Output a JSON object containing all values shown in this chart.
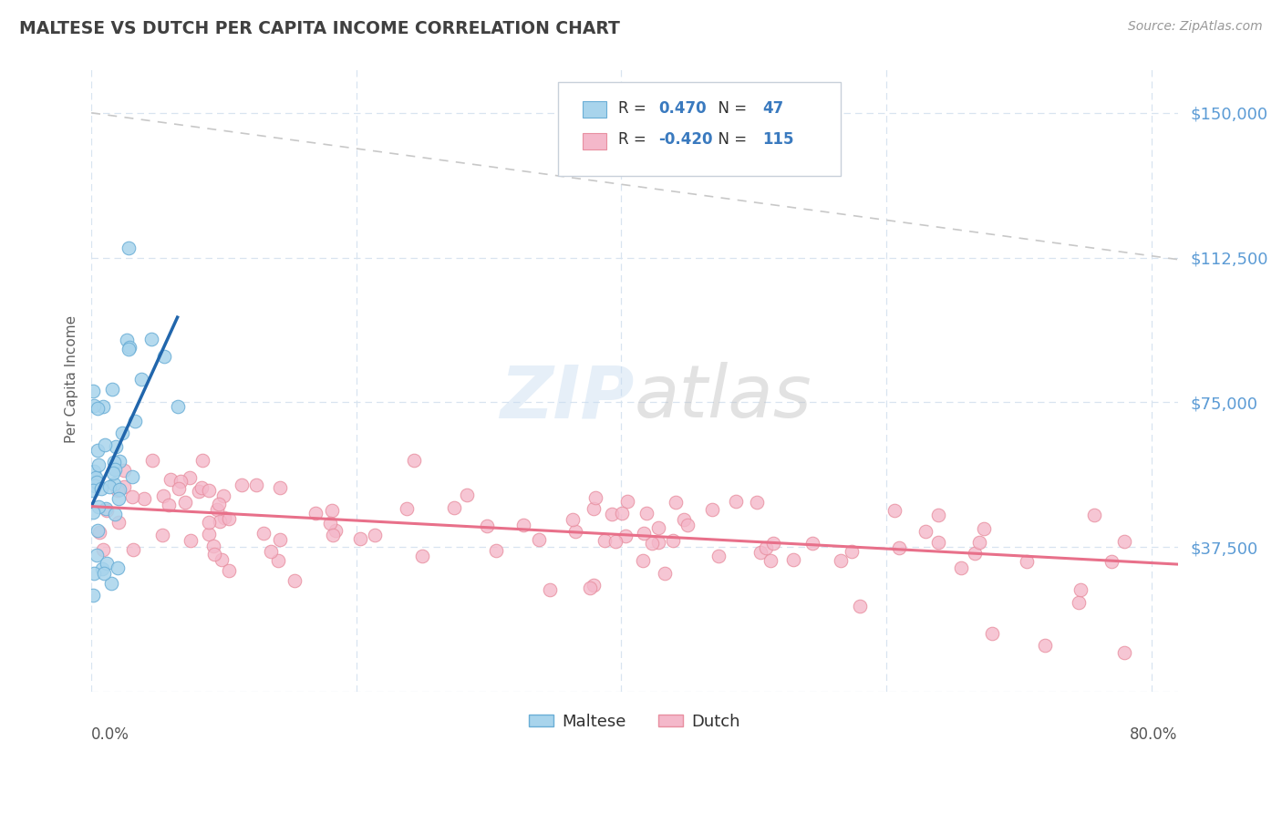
{
  "title": "MALTESE VS DUTCH PER CAPITA INCOME CORRELATION CHART",
  "source": "Source: ZipAtlas.com",
  "ylabel": "Per Capita Income",
  "yticks": [
    0,
    37500,
    75000,
    112500,
    150000
  ],
  "ytick_labels": [
    "",
    "$37,500",
    "$75,000",
    "$112,500",
    "$150,000"
  ],
  "ylim": [
    0,
    162000
  ],
  "xlim": [
    0.0,
    0.82
  ],
  "maltese_color": "#a8d4ec",
  "maltese_edge_color": "#6aaed6",
  "dutch_color": "#f4b8ca",
  "dutch_edge_color": "#e88fa0",
  "maltese_line_color": "#2166ac",
  "dutch_line_color": "#e8708a",
  "ref_line_color": "#c8c8c8",
  "title_color": "#404040",
  "ylabel_color": "#606060",
  "ytick_color": "#5b9bd5",
  "legend_text_color": "#303030",
  "r_value_color": "#3a7abf",
  "grid_color": "#d8e4f0",
  "background_color": "#ffffff",
  "maltese_R": 0.47,
  "maltese_N": 47,
  "dutch_R": -0.42,
  "dutch_N": 115,
  "ref_line_x": [
    0.0,
    0.82
  ],
  "ref_line_y": [
    150000,
    112000
  ],
  "maltese_line_x": [
    0.0,
    0.065
  ],
  "maltese_line_y": [
    48000,
    97000
  ],
  "dutch_line_x": [
    0.0,
    0.82
  ],
  "dutch_line_y": [
    48000,
    33000
  ]
}
